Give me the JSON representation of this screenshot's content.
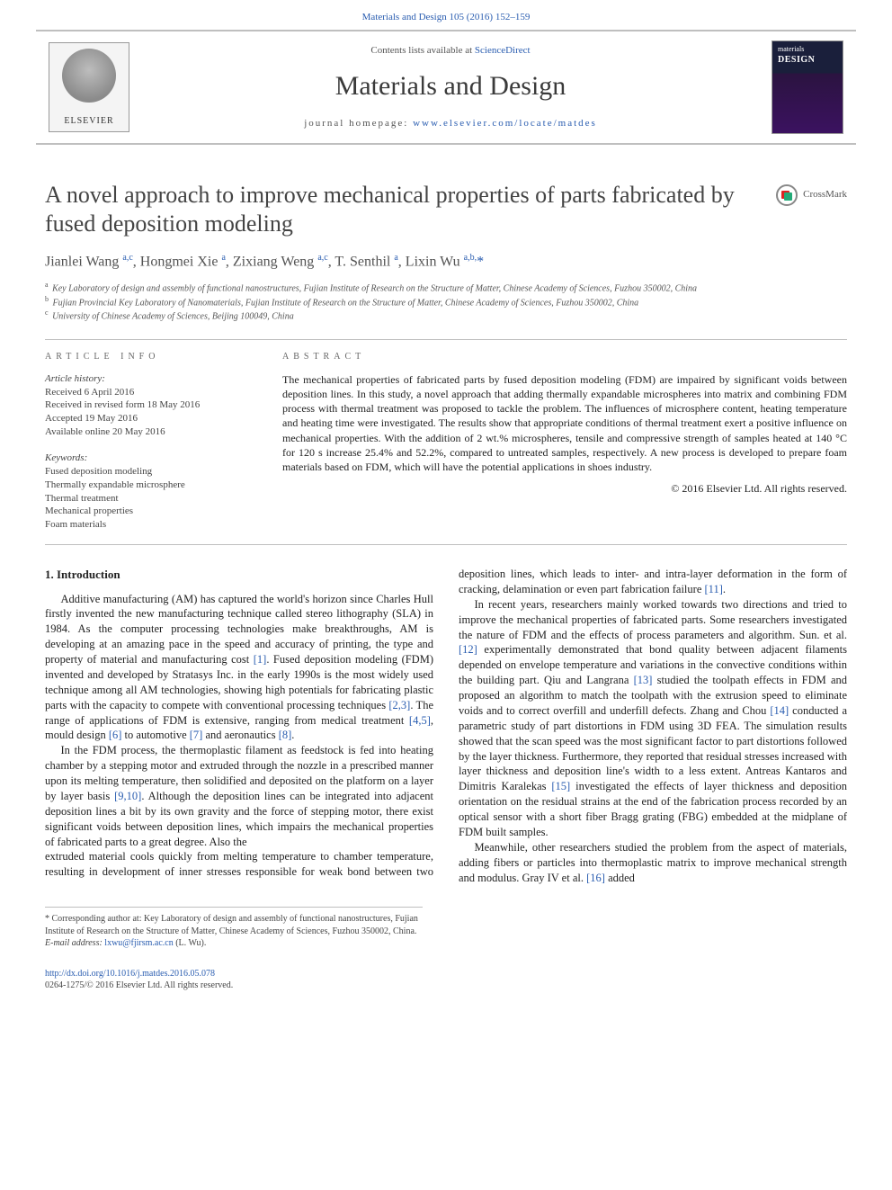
{
  "typography": {
    "body_font": "Times New Roman",
    "title_font": "Georgia",
    "body_fontsize_pt": 12.5,
    "title_fontsize_pt": 26,
    "journal_fontsize_pt": 30,
    "info_fontsize_pt": 11,
    "footnote_fontsize_pt": 10
  },
  "colors": {
    "text": "#222222",
    "muted": "#555555",
    "heading_gray": "#444444",
    "link": "#2a5db0",
    "rule": "#bfbfbf",
    "background": "#ffffff",
    "elsevier_orange": "#e97c00",
    "cover_top": "#1a1f3b",
    "cover_bottom": "#3b1260"
  },
  "topbar": {
    "citation": "Materials and Design 105 (2016) 152–159"
  },
  "header": {
    "publisher": "ELSEVIER",
    "contents_line_prefix": "Contents lists available at ",
    "contents_line_link": "ScienceDirect",
    "journal": "Materials and Design",
    "homepage_label": "journal homepage: ",
    "homepage_url": "www.elsevier.com/locate/matdes",
    "cover_small_top": "materials",
    "cover_small_sub": "DESIGN"
  },
  "article": {
    "title": "A novel approach to improve mechanical properties of parts fabricated by fused deposition modeling",
    "crossmark": "CrossMark",
    "authors_html": "Jianlei Wang <sup>a,c</sup>, Hongmei Xie <sup>a</sup>, Zixiang Weng <sup>a,c</sup>, T. Senthil <sup>a</sup>, Lixin Wu <sup>a,b,</sup><span class='affstar'>*</span>",
    "affiliations": [
      {
        "key": "a",
        "text": "Key Laboratory of design and assembly of functional nanostructures, Fujian Institute of Research on the Structure of Matter, Chinese Academy of Sciences, Fuzhou 350002, China"
      },
      {
        "key": "b",
        "text": "Fujian Provincial Key Laboratory of Nanomaterials, Fujian Institute of Research on the Structure of Matter, Chinese Academy of Sciences, Fuzhou 350002, China"
      },
      {
        "key": "c",
        "text": "University of Chinese Academy of Sciences, Beijing 100049, China"
      }
    ]
  },
  "info": {
    "heading": "ARTICLE INFO",
    "history_label": "Article history:",
    "history": [
      "Received 6 April 2016",
      "Received in revised form 18 May 2016",
      "Accepted 19 May 2016",
      "Available online 20 May 2016"
    ],
    "keywords_label": "Keywords:",
    "keywords": [
      "Fused deposition modeling",
      "Thermally expandable microsphere",
      "Thermal treatment",
      "Mechanical properties",
      "Foam materials"
    ]
  },
  "abstract": {
    "heading": "ABSTRACT",
    "text": "The mechanical properties of fabricated parts by fused deposition modeling (FDM) are impaired by significant voids between deposition lines. In this study, a novel approach that adding thermally expandable microspheres into matrix and combining FDM process with thermal treatment was proposed to tackle the problem. The influences of microsphere content, heating temperature and heating time were investigated. The results show that appropriate conditions of thermal treatment exert a positive influence on mechanical properties. With the addition of 2 wt.% microspheres, tensile and compressive strength of samples heated at 140 °C for 120 s increase 25.4% and 52.2%, compared to untreated samples, respectively. A new process is developed to prepare foam materials based on FDM, which will have the potential applications in shoes industry.",
    "copyright": "© 2016 Elsevier Ltd. All rights reserved."
  },
  "body": {
    "section_heading": "1. Introduction",
    "p1": "Additive manufacturing (AM) has captured the world's horizon since Charles Hull firstly invented the new manufacturing technique called stereo lithography (SLA) in 1984. As the computer processing technologies make breakthroughs, AM is developing at an amazing pace in the speed and accuracy of printing, the type and property of material and manufacturing cost [1]. Fused deposition modeling (FDM) invented and developed by Stratasys Inc. in the early 1990s is the most widely used technique among all AM technologies, showing high potentials for fabricating plastic parts with the capacity to compete with conventional processing techniques [2,3]. The range of applications of FDM is extensive, ranging from medical treatment [4,5], mould design [6] to automotive [7] and aeronautics [8].",
    "p2": "In the FDM process, the thermoplastic filament as feedstock is fed into heating chamber by a stepping motor and extruded through the nozzle in a prescribed manner upon its melting temperature, then solidified and deposited on the platform on a layer by layer basis [9,10]. Although the deposition lines can be integrated into adjacent deposition lines a bit by its own gravity and the force of stepping motor, there exist significant voids between deposition lines, which impairs the mechanical properties of fabricated parts to a great degree. Also the",
    "p3": "extruded material cools quickly from melting temperature to chamber temperature, resulting in development of inner stresses responsible for weak bond between two deposition lines, which leads to inter- and intra-layer deformation in the form of cracking, delamination or even part fabrication failure [11].",
    "p4": "In recent years, researchers mainly worked towards two directions and tried to improve the mechanical properties of fabricated parts. Some researchers investigated the nature of FDM and the effects of process parameters and algorithm. Sun. et al. [12] experimentally demonstrated that bond quality between adjacent filaments depended on envelope temperature and variations in the convective conditions within the building part. Qiu and Langrana [13] studied the toolpath effects in FDM and proposed an algorithm to match the toolpath with the extrusion speed to eliminate voids and to correct overfill and underfill defects. Zhang and Chou [14] conducted a parametric study of part distortions in FDM using 3D FEA. The simulation results showed that the scan speed was the most significant factor to part distortions followed by the layer thickness. Furthermore, they reported that residual stresses increased with layer thickness and deposition line's width to a less extent. Antreas Kantaros and Dimitris Karalekas [15] investigated the effects of layer thickness and deposition orientation on the residual strains at the end of the fabrication process recorded by an optical sensor with a short fiber Bragg grating (FBG) embedded at the midplane of FDM built samples.",
    "p5": "Meanwhile, other researchers studied the problem from the aspect of materials, adding fibers or particles into thermoplastic matrix to improve mechanical strength and modulus. Gray IV et al. [16] added",
    "citations_in_text": [
      "[1]",
      "[2,3]",
      "[4,5]",
      "[6]",
      "[7]",
      "[8]",
      "[9,10]",
      "[11]",
      "[12]",
      "[13]",
      "[14]",
      "[15]",
      "[16]"
    ]
  },
  "footnote": {
    "star_label": "* Corresponding author at: Key Laboratory of design and assembly of functional nanostructures, Fujian Institute of Research on the Structure of Matter, Chinese Academy of Sciences, Fuzhou 350002, China.",
    "email_label": "E-mail address:",
    "email": "lxwu@fjirsm.ac.cn",
    "email_person": "(L. Wu)."
  },
  "footer": {
    "doi": "http://dx.doi.org/10.1016/j.matdes.2016.05.078",
    "issn_line": "0264-1275/© 2016 Elsevier Ltd. All rights reserved."
  }
}
